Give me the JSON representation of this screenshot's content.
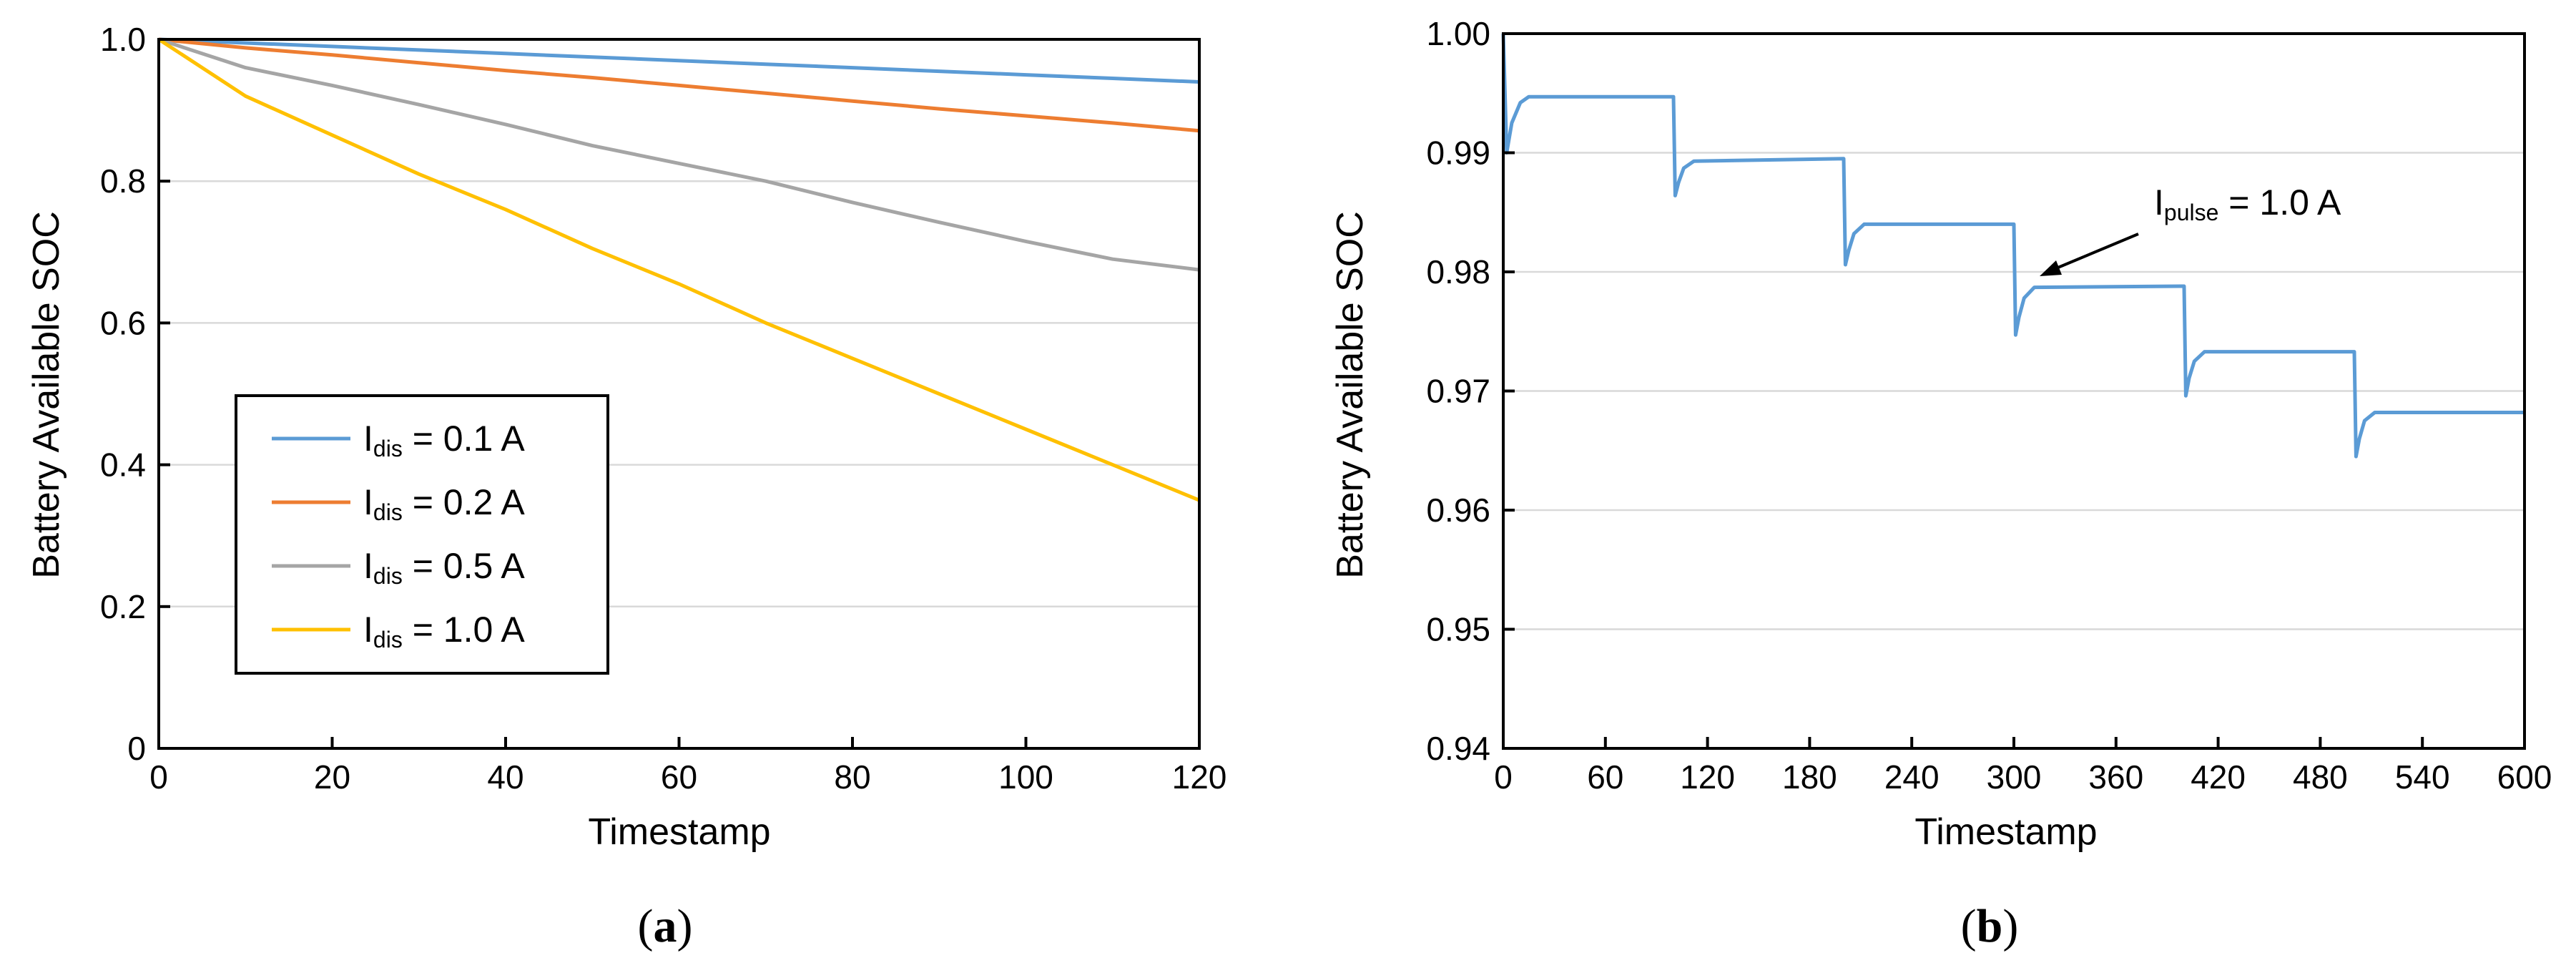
{
  "chart_data": [
    {
      "type": "line",
      "panel": "a",
      "panel_label_open": "(",
      "panel_label_close": ")",
      "xlabel": "Timestamp",
      "ylabel": "Battery Available SOC",
      "xlim": [
        0,
        120
      ],
      "ylim": [
        0,
        1.0
      ],
      "xticks": [
        0,
        20,
        40,
        60,
        80,
        100,
        120
      ],
      "xtick_labels": [
        "0",
        "20",
        "40",
        "60",
        "80",
        "100",
        "120"
      ],
      "yticks": [
        0,
        0.2,
        0.4,
        0.6,
        0.8,
        1.0
      ],
      "ytick_labels": [
        "0",
        "0.2",
        "0.4",
        "0.6",
        "0.8",
        "1.0"
      ],
      "grid": "horizontal",
      "legend_position": "lower-left",
      "series": [
        {
          "name": "Idis = 0.1 A",
          "legend_prefix": "I",
          "legend_sub": "dis",
          "legend_suffix": " = 0.1 A",
          "color": "#5b9bd5",
          "points": [
            [
              0,
              1.0
            ],
            [
              10,
              0.995
            ],
            [
              20,
              0.99
            ],
            [
              30,
              0.985
            ],
            [
              40,
              0.98
            ],
            [
              50,
              0.975
            ],
            [
              60,
              0.97
            ],
            [
              70,
              0.965
            ],
            [
              80,
              0.96
            ],
            [
              90,
              0.955
            ],
            [
              100,
              0.95
            ],
            [
              110,
              0.945
            ],
            [
              120,
              0.94
            ]
          ]
        },
        {
          "name": "Idis = 0.2 A",
          "legend_prefix": "I",
          "legend_sub": "dis",
          "legend_suffix": " = 0.2 A",
          "color": "#ed7d31",
          "points": [
            [
              0,
              1.0
            ],
            [
              10,
              0.988
            ],
            [
              20,
              0.978
            ],
            [
              30,
              0.967
            ],
            [
              40,
              0.956
            ],
            [
              50,
              0.946
            ],
            [
              60,
              0.935
            ],
            [
              70,
              0.924
            ],
            [
              80,
              0.913
            ],
            [
              90,
              0.902
            ],
            [
              100,
              0.892
            ],
            [
              110,
              0.882
            ],
            [
              120,
              0.871
            ]
          ]
        },
        {
          "name": "Idis = 0.5 A",
          "legend_prefix": "I",
          "legend_sub": "dis",
          "legend_suffix": " = 0.5 A",
          "color": "#a5a5a5",
          "points": [
            [
              0,
              1.0
            ],
            [
              10,
              0.96
            ],
            [
              20,
              0.935
            ],
            [
              30,
              0.908
            ],
            [
              40,
              0.88
            ],
            [
              50,
              0.85
            ],
            [
              60,
              0.825
            ],
            [
              70,
              0.8
            ],
            [
              80,
              0.77
            ],
            [
              90,
              0.742
            ],
            [
              100,
              0.715
            ],
            [
              110,
              0.69
            ],
            [
              120,
              0.675
            ]
          ]
        },
        {
          "name": "Idis = 1.0 A",
          "legend_prefix": "I",
          "legend_sub": "dis",
          "legend_suffix": " = 1.0 A",
          "color": "#ffc000",
          "points": [
            [
              0,
              1.0
            ],
            [
              10,
              0.92
            ],
            [
              20,
              0.865
            ],
            [
              30,
              0.81
            ],
            [
              40,
              0.76
            ],
            [
              50,
              0.705
            ],
            [
              60,
              0.655
            ],
            [
              70,
              0.6
            ],
            [
              80,
              0.55
            ],
            [
              90,
              0.5
            ],
            [
              100,
              0.45
            ],
            [
              110,
              0.4
            ],
            [
              120,
              0.35
            ]
          ]
        }
      ]
    },
    {
      "type": "line",
      "panel": "b",
      "panel_label_open": "(",
      "panel_label_close": ")",
      "xlabel": "Timestamp",
      "ylabel": "Battery Available SOC",
      "xlim": [
        0,
        600
      ],
      "ylim": [
        0.94,
        1.0
      ],
      "xticks": [
        0,
        60,
        120,
        180,
        240,
        300,
        360,
        420,
        480,
        540,
        600
      ],
      "xtick_labels": [
        "0",
        "60",
        "120",
        "180",
        "240",
        "300",
        "360",
        "420",
        "480",
        "540",
        "600"
      ],
      "yticks": [
        0.94,
        0.95,
        0.96,
        0.97,
        0.98,
        0.99,
        1.0
      ],
      "ytick_labels": [
        "0.94",
        "0.95",
        "0.96",
        "0.97",
        "0.98",
        "0.99",
        "1.00"
      ],
      "grid": "horizontal",
      "annotation": {
        "prefix": "I",
        "sub": "pulse",
        "suffix": " = 1.0 A",
        "points_to": [
          310,
          0.9791
        ]
      },
      "series": [
        {
          "color": "#5b9bd5",
          "points": [
            [
              0,
              1.0
            ],
            [
              2,
              0.99
            ],
            [
              5,
              0.9925
            ],
            [
              10,
              0.9942
            ],
            [
              15,
              0.9947
            ],
            [
              100,
              0.9947
            ],
            [
              101,
              0.9864
            ],
            [
              103,
              0.9875
            ],
            [
              106,
              0.9887
            ],
            [
              112,
              0.9893
            ],
            [
              200,
              0.9895
            ],
            [
              201,
              0.9806
            ],
            [
              203,
              0.9818
            ],
            [
              206,
              0.9832
            ],
            [
              212,
              0.984
            ],
            [
              300,
              0.984
            ],
            [
              301,
              0.9747
            ],
            [
              303,
              0.9762
            ],
            [
              306,
              0.9778
            ],
            [
              312,
              0.9787
            ],
            [
              400,
              0.9788
            ],
            [
              401,
              0.9696
            ],
            [
              403,
              0.9711
            ],
            [
              406,
              0.9725
            ],
            [
              412,
              0.9733
            ],
            [
              500,
              0.9733
            ],
            [
              501,
              0.9645
            ],
            [
              503,
              0.966
            ],
            [
              506,
              0.9675
            ],
            [
              512,
              0.9682
            ],
            [
              600,
              0.9682
            ]
          ]
        }
      ]
    }
  ]
}
